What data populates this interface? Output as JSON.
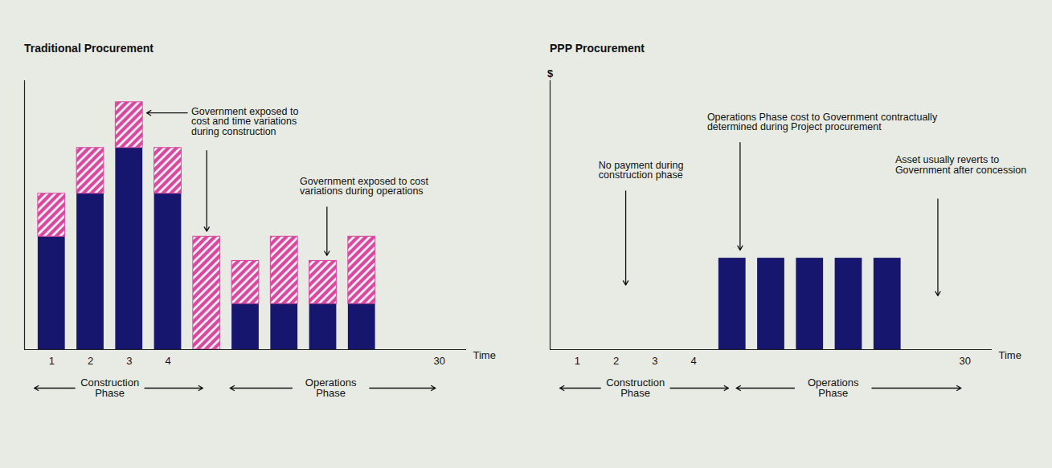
{
  "chart_data": [
    {
      "type": "bar",
      "title": "Traditional Procurement",
      "categories": [
        "1",
        "2",
        "3",
        "4",
        null,
        null,
        null,
        null,
        null,
        null,
        "30"
      ],
      "series": [
        {
          "color": "#16166e",
          "values": [
            42,
            58,
            75,
            58,
            0,
            17,
            17,
            17,
            17,
            null,
            null
          ]
        },
        {
          "color": "#d9479f",
          "values": [
            16,
            17,
            17,
            17,
            42,
            16,
            25,
            16,
            25,
            null,
            null
          ]
        }
      ],
      "stacked": true,
      "grid": false,
      "tick_labels": "x",
      "xlabel": "Time",
      "ylim": [
        0,
        100
      ],
      "yticks": [],
      "annotations": [
        {
          "text": "Government exposed to cost and time variations during construction"
        },
        {
          "text": "Government exposed to cost variations during operations"
        }
      ],
      "phases": [
        "Construction Phase",
        "Operations Phase"
      ]
    },
    {
      "type": "bar",
      "title": "PPP Procurement",
      "categories": [
        "1",
        "2",
        "3",
        "4",
        null,
        null,
        null,
        null,
        null,
        null,
        "30"
      ],
      "values": [
        null,
        null,
        null,
        null,
        34,
        34,
        34,
        34,
        34,
        null,
        null
      ],
      "color": "#16166e",
      "grid": false,
      "tick_labels": "x",
      "xlabel": "Time",
      "ylabel": "$",
      "ylim": [
        0,
        100
      ],
      "yticks": [],
      "annotations": [
        {
          "text": "No payment during construction phase"
        },
        {
          "text": "Operations Phase cost to Government contractually determined during Project procurement"
        },
        {
          "text": "Asset usually reverts to Government after concession"
        }
      ],
      "phases": [
        "Construction Phase",
        "Operations Phase"
      ]
    }
  ]
}
